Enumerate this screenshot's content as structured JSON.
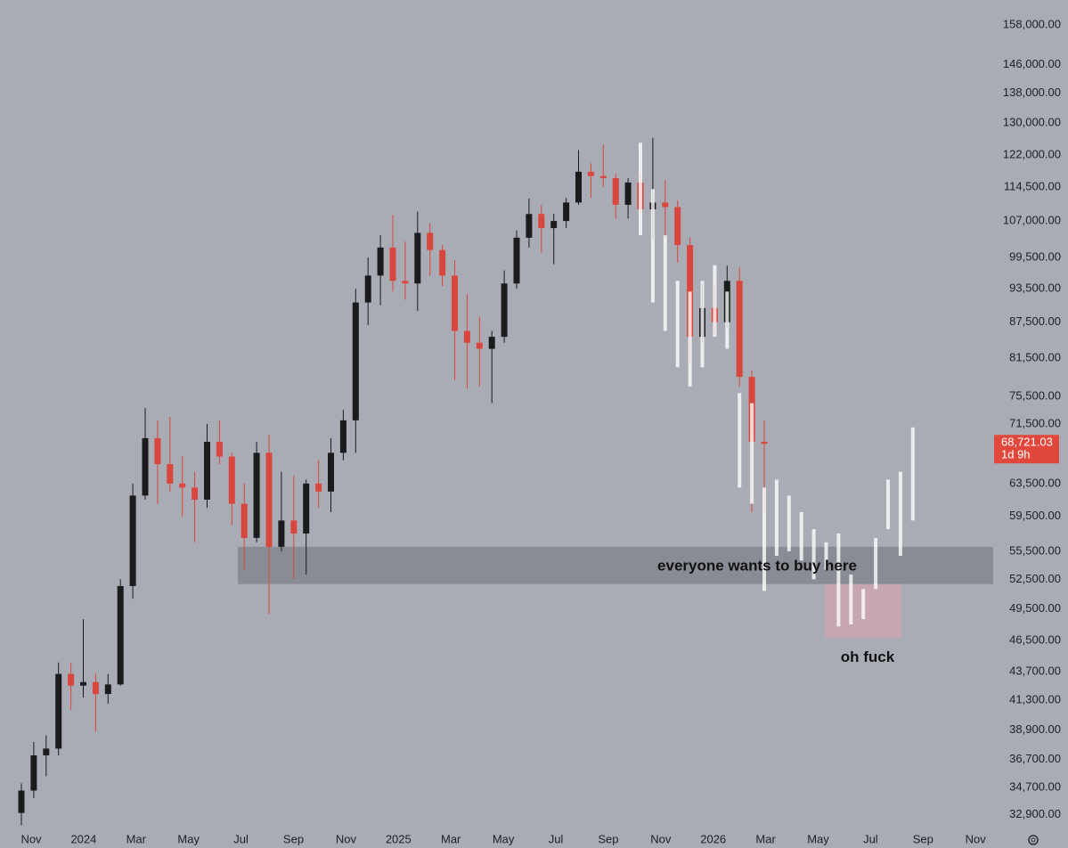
{
  "chart_data": {
    "type": "candlestick",
    "log_scale": true,
    "ylim": [
      32000,
      166000
    ],
    "yticks": [
      {
        "value": 158000,
        "label": "158,000.00"
      },
      {
        "value": 146000,
        "label": "146,000.00"
      },
      {
        "value": 138000,
        "label": "138,000.00"
      },
      {
        "value": 130000,
        "label": "130,000.00"
      },
      {
        "value": 122000,
        "label": "122,000.00"
      },
      {
        "value": 114500,
        "label": "114,500.00"
      },
      {
        "value": 107000,
        "label": "107,000.00"
      },
      {
        "value": 99500,
        "label": "99,500.00"
      },
      {
        "value": 93500,
        "label": "93,500.00"
      },
      {
        "value": 87500,
        "label": "87,500.00"
      },
      {
        "value": 81500,
        "label": "81,500.00"
      },
      {
        "value": 75500,
        "label": "75,500.00"
      },
      {
        "value": 71500,
        "label": "71,500.00"
      },
      {
        "value": 63500,
        "label": "63,500.00"
      },
      {
        "value": 59500,
        "label": "59,500.00"
      },
      {
        "value": 55500,
        "label": "55,500.00"
      },
      {
        "value": 52500,
        "label": "52,500.00"
      },
      {
        "value": 49500,
        "label": "49,500.00"
      },
      {
        "value": 46500,
        "label": "46,500.00"
      },
      {
        "value": 43700,
        "label": "43,700.00"
      },
      {
        "value": 41300,
        "label": "41,300.00"
      },
      {
        "value": 38900,
        "label": "38,900.00"
      },
      {
        "value": 36700,
        "label": "36,700.00"
      },
      {
        "value": 34700,
        "label": "34,700.00"
      },
      {
        "value": 32900,
        "label": "32,900.00"
      }
    ],
    "xtick_labels": [
      "Nov",
      "2024",
      "Mar",
      "May",
      "Jul",
      "Sep",
      "Nov",
      "2025",
      "Mar",
      "May",
      "Jul",
      "Sep",
      "Nov",
      "2026",
      "Mar",
      "May",
      "Jul",
      "Sep",
      "Nov"
    ],
    "categories": [
      null,
      null,
      null,
      null,
      null,
      null,
      null,
      null,
      null,
      null,
      null,
      null,
      null,
      null,
      null,
      null,
      null,
      null,
      null,
      null,
      null,
      null,
      null,
      null,
      null,
      null,
      null,
      null,
      null,
      null,
      null,
      null,
      null,
      null,
      null,
      null,
      null,
      null,
      null,
      null,
      null,
      null,
      null,
      null,
      null,
      null,
      null,
      null,
      null,
      null,
      null,
      null,
      null,
      null,
      null,
      null,
      null,
      null,
      null,
      null,
      null,
      null,
      null,
      null,
      null,
      null,
      null,
      null,
      null,
      null,
      null,
      null,
      null
    ],
    "up_color": "#1b1b1e",
    "down_color": "#d9463d",
    "series": [
      {
        "kind": "candles",
        "open": [
          33000,
          34500,
          37000,
          37500,
          43500,
          42500,
          42800,
          41800,
          42600,
          51800,
          62000,
          69500,
          66000,
          63500,
          63000,
          61500,
          69000,
          67000,
          61000,
          57000,
          67500,
          56000,
          59000,
          57500,
          63500,
          62500,
          67500,
          72000,
          91000,
          96000,
          101500,
          95000,
          94500,
          104500,
          101000,
          96000,
          86000,
          84000,
          83000,
          85000,
          94500,
          103500,
          108500,
          105500,
          107000,
          111000,
          118000,
          117000,
          116500,
          110500,
          115500,
          109500,
          111000,
          110000,
          102000,
          85000,
          90000,
          87500,
          95000,
          78500,
          69000,
          null,
          null,
          null,
          null,
          null,
          null,
          null,
          null,
          null,
          null,
          null,
          null
        ],
        "high": [
          35000,
          38000,
          38500,
          44500,
          44500,
          48500,
          43500,
          43500,
          52500,
          63500,
          73800,
          72000,
          72500,
          67000,
          65000,
          71500,
          72000,
          67500,
          63500,
          69000,
          70000,
          65000,
          64500,
          64000,
          66500,
          69500,
          73500,
          93500,
          99500,
          104000,
          108300,
          102700,
          109000,
          106500,
          102000,
          99000,
          92500,
          88500,
          86000,
          97000,
          105000,
          111900,
          110500,
          108500,
          112000,
          123200,
          120000,
          124500,
          117500,
          116500,
          117500,
          126200,
          116000,
          111500,
          103500,
          94500,
          94500,
          97900,
          97500,
          79500,
          72000,
          null,
          null,
          null,
          null,
          null,
          null,
          null,
          null,
          null,
          null,
          null,
          null
        ],
        "low": [
          32200,
          34000,
          35500,
          37000,
          40500,
          41500,
          38800,
          41000,
          42500,
          50500,
          61500,
          61000,
          62500,
          59500,
          56500,
          60500,
          66000,
          58500,
          53500,
          56500,
          49000,
          55500,
          52500,
          53000,
          60500,
          60000,
          66500,
          67500,
          87000,
          90500,
          93000,
          91500,
          89500,
          96000,
          94000,
          78000,
          76700,
          77000,
          74500,
          84000,
          93500,
          101500,
          100500,
          98200,
          105500,
          110500,
          112000,
          114500,
          107500,
          107500,
          108500,
          103000,
          103500,
          98500,
          80500,
          84000,
          85000,
          86500,
          77000,
          60000,
          60000,
          null,
          null,
          null,
          null,
          null,
          null,
          null,
          null,
          null,
          null,
          null,
          null
        ],
        "close": [
          34500,
          37000,
          37500,
          43500,
          42500,
          42800,
          41800,
          42600,
          51800,
          62000,
          69500,
          66000,
          63500,
          63000,
          61500,
          69000,
          67000,
          61000,
          57000,
          67500,
          56000,
          59000,
          57500,
          63500,
          62500,
          67500,
          72000,
          91000,
          96000,
          101500,
          95000,
          94500,
          104500,
          101000,
          96000,
          86000,
          84000,
          83000,
          85000,
          94500,
          103500,
          108500,
          105500,
          107000,
          111000,
          118000,
          117000,
          116500,
          110500,
          115500,
          109500,
          111000,
          110000,
          102000,
          85000,
          90000,
          87500,
          95000,
          78500,
          69000,
          68721.03,
          null,
          null,
          null,
          null,
          null,
          null,
          null,
          null,
          null,
          null,
          null,
          null
        ]
      },
      {
        "kind": "ghost",
        "color": "rgba(255,255,255,0.78)",
        "high": [
          null,
          null,
          null,
          null,
          null,
          null,
          null,
          null,
          null,
          null,
          null,
          null,
          null,
          null,
          null,
          null,
          null,
          null,
          null,
          null,
          null,
          null,
          null,
          null,
          null,
          null,
          null,
          null,
          null,
          null,
          null,
          null,
          null,
          null,
          null,
          null,
          null,
          null,
          null,
          null,
          null,
          null,
          null,
          null,
          null,
          null,
          null,
          null,
          null,
          null,
          125000,
          114000,
          104000,
          95000,
          93000,
          95000,
          98000,
          93000,
          76000,
          74500,
          63000,
          64000,
          62000,
          60000,
          58000,
          56500,
          57500,
          53000,
          51500,
          57000,
          64000,
          65000,
          71000
        ],
        "low": [
          null,
          null,
          null,
          null,
          null,
          null,
          null,
          null,
          null,
          null,
          null,
          null,
          null,
          null,
          null,
          null,
          null,
          null,
          null,
          null,
          null,
          null,
          null,
          null,
          null,
          null,
          null,
          null,
          null,
          null,
          null,
          null,
          null,
          null,
          null,
          null,
          null,
          null,
          null,
          null,
          null,
          null,
          null,
          null,
          null,
          null,
          null,
          null,
          null,
          null,
          104000,
          91000,
          86000,
          80000,
          77000,
          80000,
          85000,
          83000,
          63000,
          61000,
          51300,
          55000,
          55500,
          54500,
          52500,
          53500,
          47800,
          48000,
          48500,
          51500,
          58000,
          55000,
          59000
        ]
      }
    ],
    "zones": [
      {
        "label": "everyone wants to buy here",
        "top": 56000,
        "bottom": 52000,
        "color": "rgba(112,114,122,0.55)"
      },
      {
        "label": "oh fuck",
        "top": 52000,
        "bottom": 46700,
        "color": "rgba(232,160,170,0.45)"
      }
    ],
    "last_price": {
      "value": 68721.03,
      "label": "68,721.03"
    },
    "countdown": "1d 9h",
    "last_price_color": "#e0483c"
  }
}
